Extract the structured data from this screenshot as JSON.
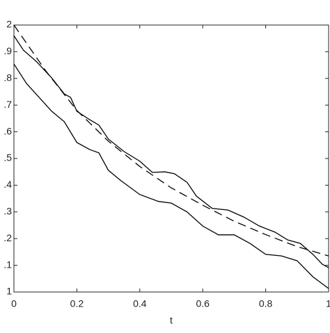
{
  "chart_data": {
    "type": "line",
    "xlabel": "t",
    "xlim": [
      0,
      1
    ],
    "ylim": [
      1,
      2
    ],
    "xticks": [
      0,
      0.2,
      0.4,
      0.6,
      0.8,
      1
    ],
    "yticks": [
      1,
      {
        "value": 1.1,
        "label": ".1"
      },
      {
        "value": 1.2,
        "label": ".2"
      },
      {
        "value": 1.3,
        "label": ".3"
      },
      {
        "value": 1.4,
        "label": ".4"
      },
      {
        "value": 1.5,
        "label": ".5"
      },
      {
        "value": 1.6,
        "label": ".6"
      },
      {
        "value": 1.7,
        "label": ".7"
      },
      {
        "value": 1.8,
        "label": ".8"
      },
      {
        "value": 1.9,
        "label": ".9"
      },
      2
    ],
    "series": [
      {
        "color": "#000000",
        "style": "dashed",
        "x": [
          0,
          0.1,
          0.2,
          0.3,
          0.4,
          0.5,
          0.6,
          0.7,
          0.8,
          0.9,
          1
        ],
        "values": [
          2.0,
          1.83,
          1.68,
          1.565,
          1.47,
          1.39,
          1.325,
          1.265,
          1.215,
          1.17,
          1.135
        ]
      },
      {
        "color": "#000000",
        "style": "solid",
        "x": [
          0,
          0.03,
          0.07,
          0.12,
          0.16,
          0.18,
          0.2,
          0.24,
          0.27,
          0.3,
          0.35,
          0.4,
          0.44,
          0.48,
          0.51,
          0.55,
          0.58,
          0.63,
          0.68,
          0.73,
          0.78,
          0.83,
          0.87,
          0.91,
          0.95,
          0.98,
          1
        ],
        "values": [
          1.96,
          1.906,
          1.865,
          1.802,
          1.742,
          1.729,
          1.677,
          1.646,
          1.625,
          1.573,
          1.526,
          1.49,
          1.448,
          1.45,
          1.443,
          1.411,
          1.359,
          1.313,
          1.307,
          1.281,
          1.247,
          1.224,
          1.195,
          1.182,
          1.141,
          1.104,
          1.091
        ]
      },
      {
        "color": "#000000",
        "style": "solid",
        "x": [
          0,
          0.04,
          0.08,
          0.12,
          0.16,
          0.2,
          0.24,
          0.27,
          0.3,
          0.34,
          0.4,
          0.46,
          0.5,
          0.55,
          0.6,
          0.65,
          0.7,
          0.75,
          0.8,
          0.85,
          0.9,
          0.95,
          1
        ],
        "values": [
          1.854,
          1.781,
          1.729,
          1.677,
          1.638,
          1.56,
          1.534,
          1.521,
          1.456,
          1.417,
          1.365,
          1.339,
          1.333,
          1.3,
          1.247,
          1.214,
          1.214,
          1.182,
          1.141,
          1.135,
          1.117,
          1.057,
          1.013
        ]
      }
    ]
  }
}
